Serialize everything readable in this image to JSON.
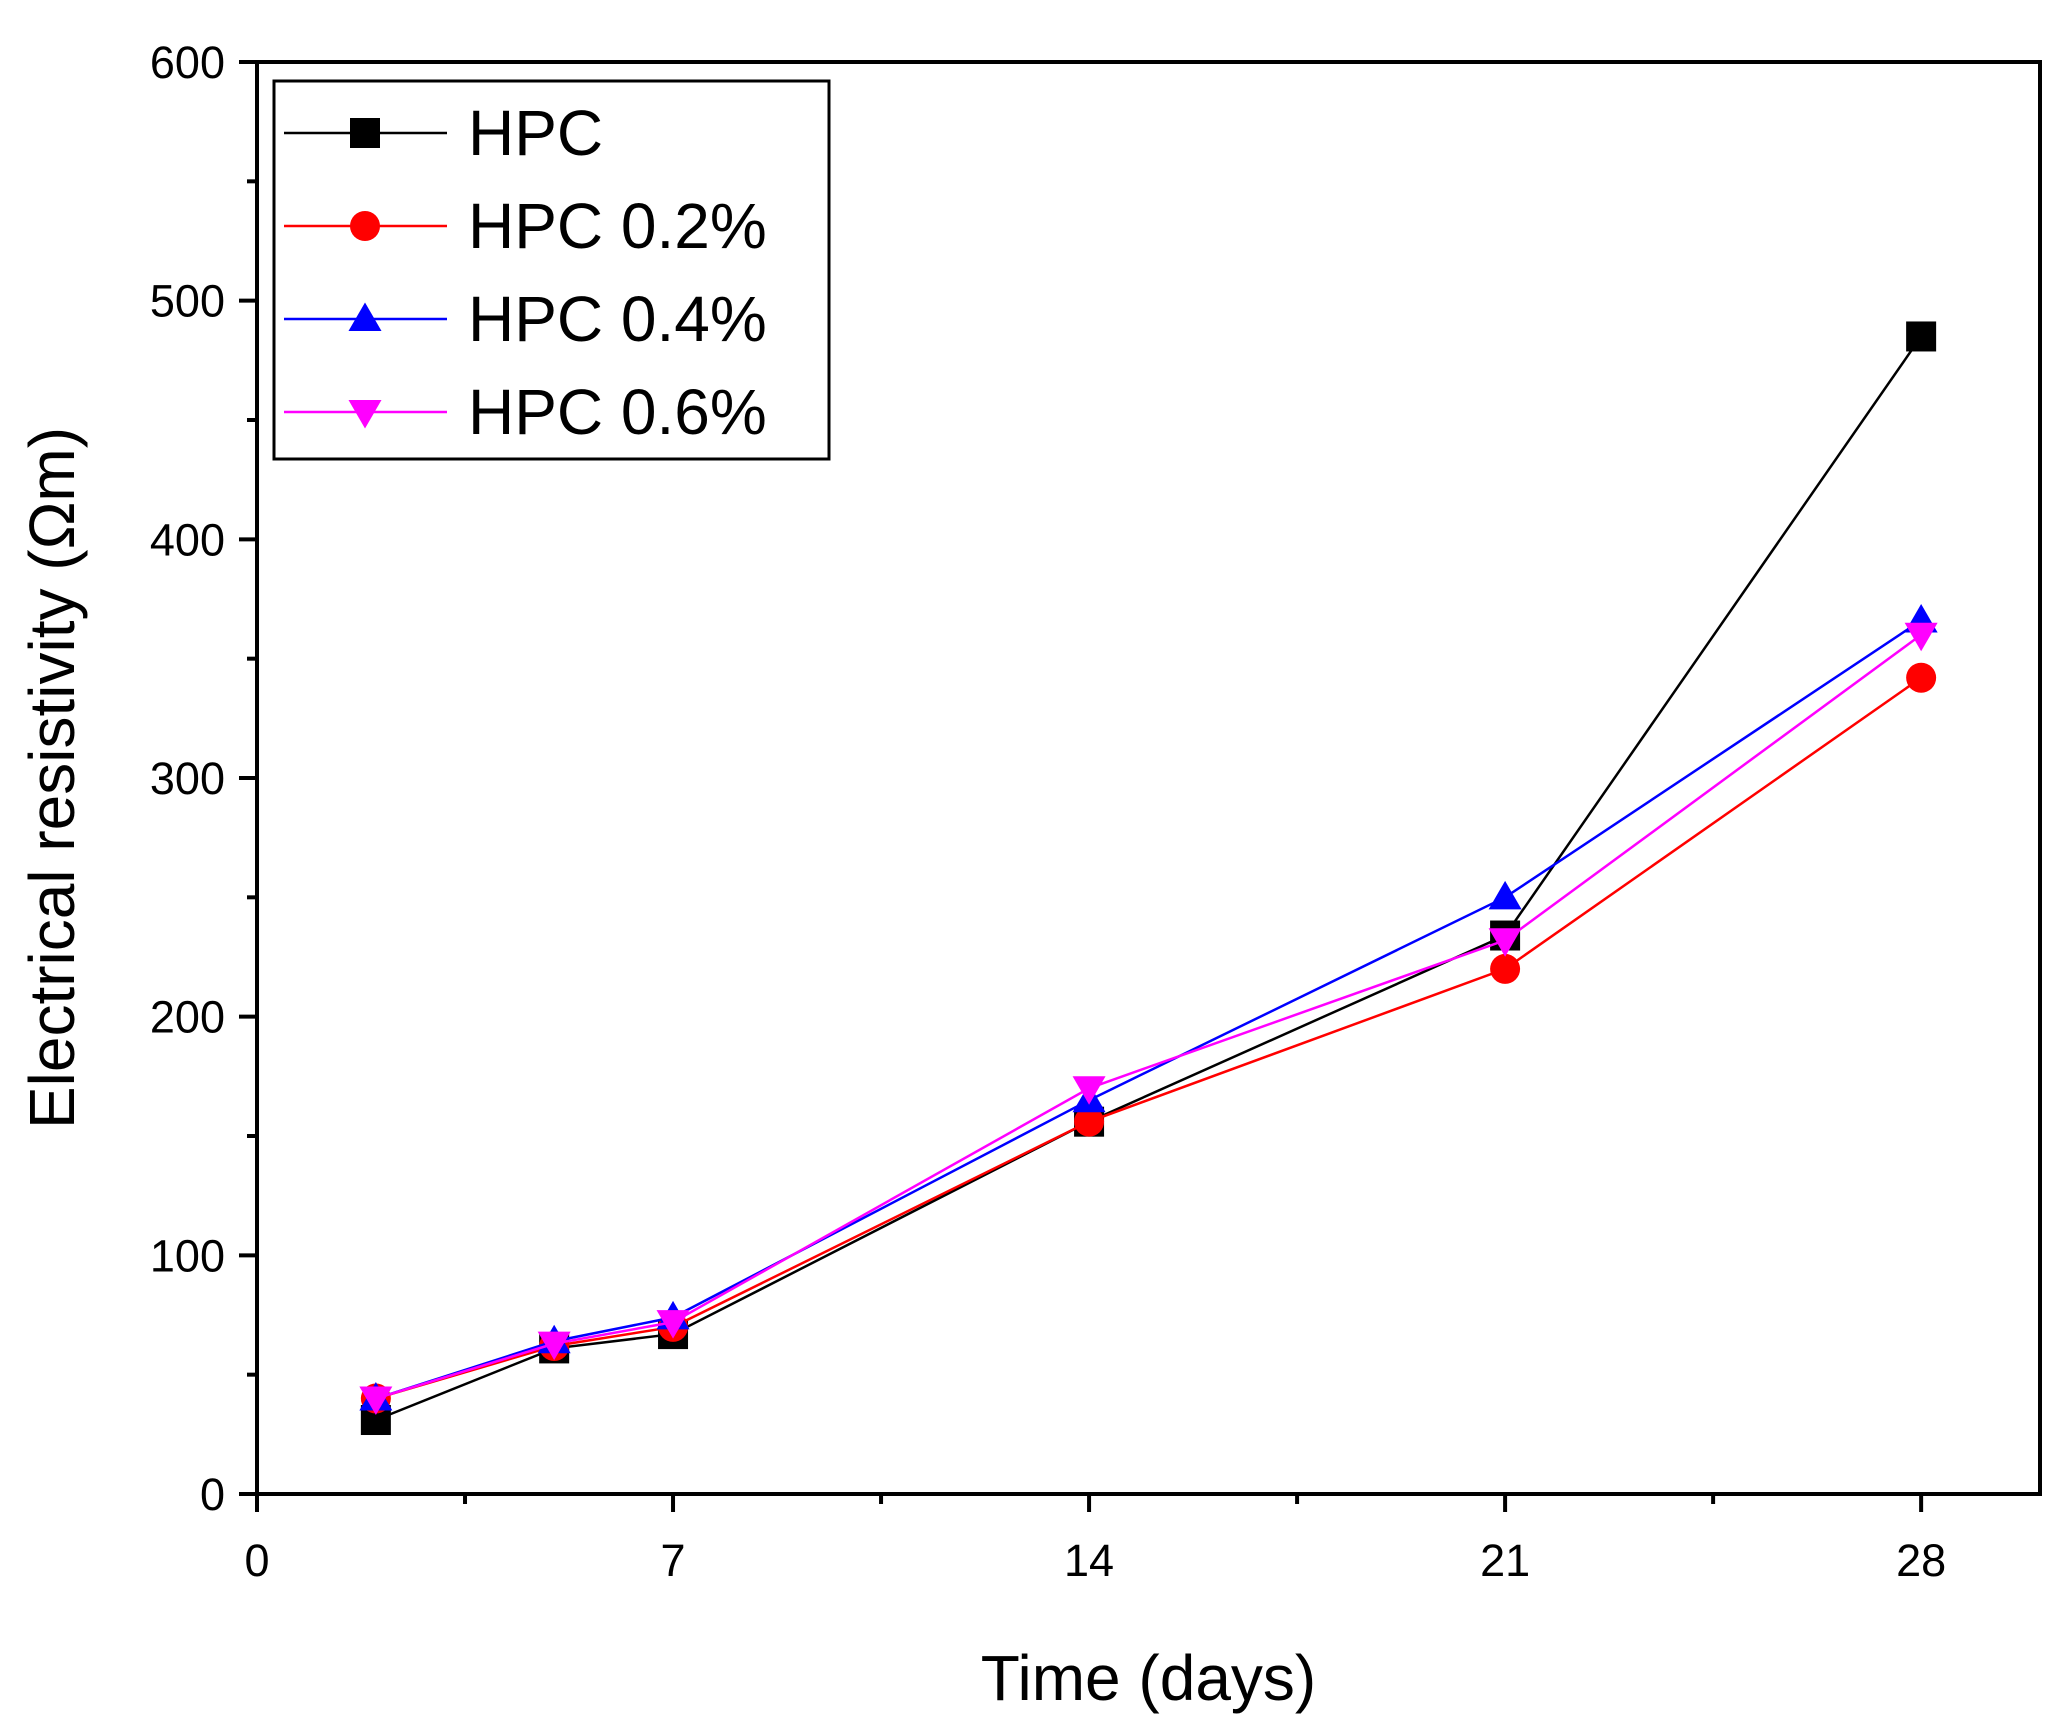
{
  "chart_data": {
    "type": "line",
    "xlabel": "Time (days)",
    "ylabel": "Electrical resistivity (Ωm)",
    "xlim": [
      0,
      30
    ],
    "ylim": [
      0,
      600
    ],
    "xticks": [
      0,
      7,
      14,
      21,
      28
    ],
    "xminor": [
      3.5,
      10.5,
      17.5,
      24.5
    ],
    "yticks": [
      0,
      100,
      200,
      300,
      400,
      500,
      600
    ],
    "yminor": [
      50,
      150,
      250,
      350,
      450,
      550
    ],
    "x": [
      2,
      5,
      7,
      14,
      21,
      28
    ],
    "legend_position": "top-left",
    "series": [
      {
        "name": "HPC",
        "color": "#000000",
        "marker": "square",
        "values": [
          31,
          61,
          67,
          156,
          234,
          485
        ]
      },
      {
        "name": "HPC 0.2%",
        "color": "#ff0000",
        "marker": "circle",
        "values": [
          40,
          62,
          70,
          156,
          220,
          342
        ]
      },
      {
        "name": "HPC 0.4%",
        "color": "#0000ff",
        "marker": "triangle-up",
        "values": [
          40,
          64,
          74,
          165,
          250,
          366
        ]
      },
      {
        "name": "HPC 0.6%",
        "color": "#ff00ff",
        "marker": "triangle-down",
        "values": [
          40,
          63,
          72,
          170,
          232,
          360
        ]
      }
    ]
  }
}
